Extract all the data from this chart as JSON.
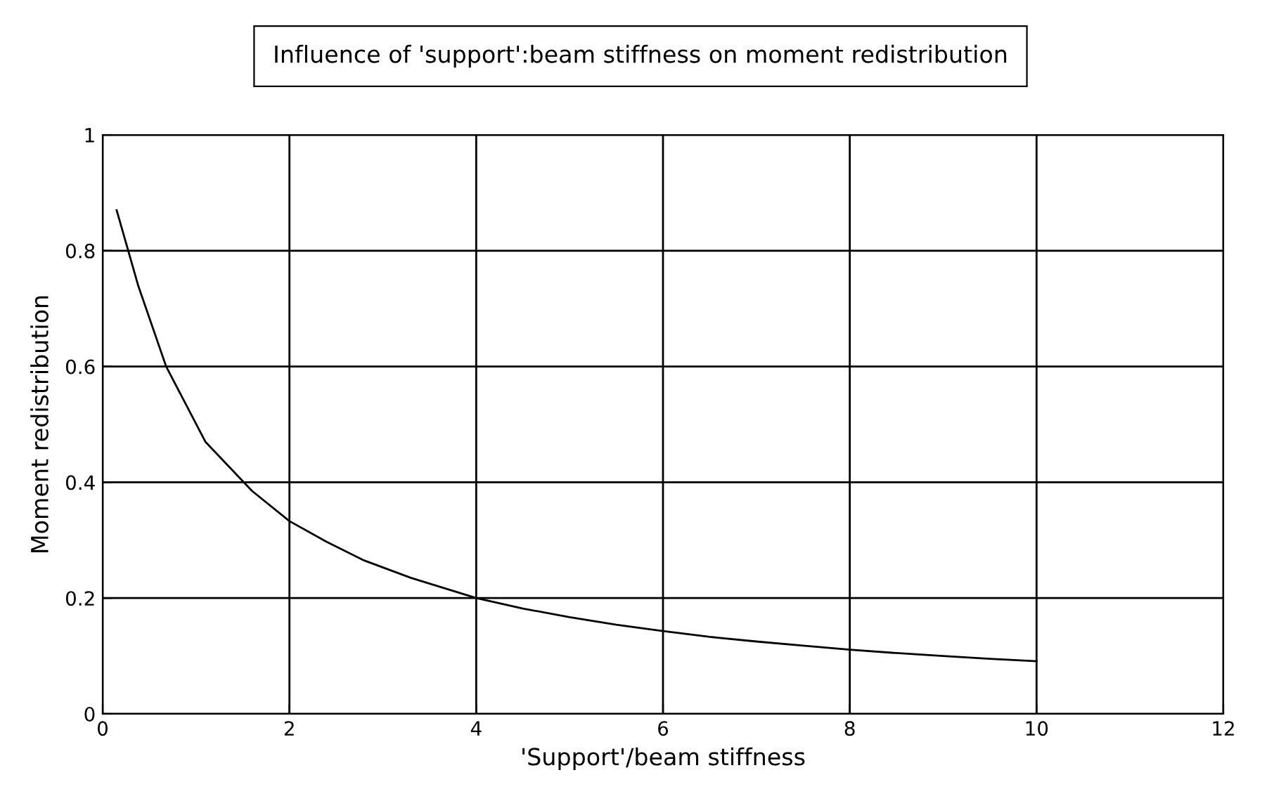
{
  "chart_data": {
    "type": "line",
    "title": "Influence of 'support':beam stiffness on moment redistribution",
    "xlabel": "'Support'/beam stiffness",
    "ylabel": "Moment redistribution",
    "series": [
      {
        "color": "#000000",
        "x": [
          0.15,
          0.38,
          0.68,
          1.1,
          1.6,
          2,
          2.4,
          2.8,
          3.3,
          4,
          4.5,
          5,
          5.5,
          6,
          6.5,
          7,
          7.5,
          8,
          8.5,
          9,
          9.5,
          10
        ],
        "values": [
          0.87,
          0.74,
          0.6,
          0.47,
          0.385,
          0.333,
          0.297,
          0.265,
          0.235,
          0.2,
          0.182,
          0.167,
          0.154,
          0.143,
          0.133,
          0.125,
          0.118,
          0.111,
          0.105,
          0.1,
          0.095,
          0.091
        ]
      }
    ],
    "xlim": [
      0,
      12
    ],
    "xticks": [
      0,
      2,
      4,
      6,
      8,
      10,
      12
    ],
    "ylim": [
      0,
      1
    ],
    "yticks": [
      0,
      0.2,
      0.4,
      0.6,
      0.8,
      1
    ],
    "grid": true,
    "marker": "none",
    "line_style": "solid"
  }
}
